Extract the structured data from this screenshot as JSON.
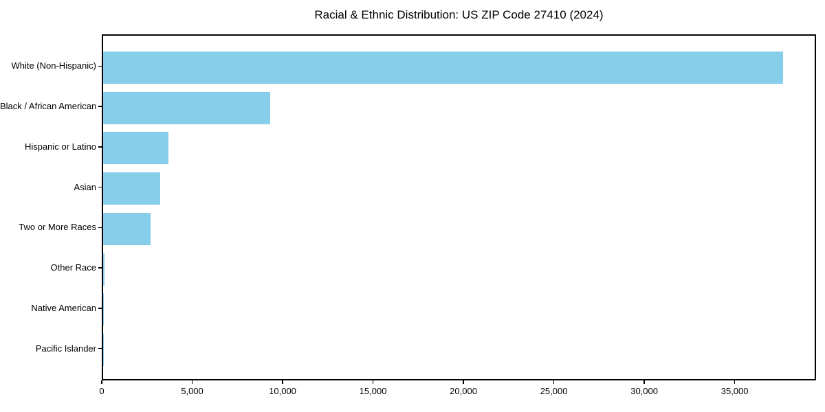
{
  "chart_data": {
    "type": "bar",
    "orientation": "horizontal",
    "title": "Racial & Ethnic Distribution: US ZIP Code 27410 (2024)",
    "categories": [
      "White (Non-Hispanic)",
      "Black / African American",
      "Hispanic or Latino",
      "Asian",
      "Two or More Races",
      "Other Race",
      "Native American",
      "Pacific Islander"
    ],
    "values": [
      37600,
      9230,
      3600,
      3150,
      2610,
      70,
      45,
      10
    ],
    "xlabel": "",
    "ylabel": "",
    "xlim": [
      0,
      39500
    ],
    "xticks": [
      0,
      5000,
      10000,
      15000,
      20000,
      25000,
      30000,
      35000
    ],
    "xtick_labels": [
      "0",
      "5,000",
      "10,000",
      "15,000",
      "20,000",
      "25,000",
      "30,000",
      "35,000"
    ],
    "bar_color": "#87CEEB",
    "background_color": "#ffffff",
    "axis_color": "#000000",
    "grid": false,
    "legend": null
  }
}
